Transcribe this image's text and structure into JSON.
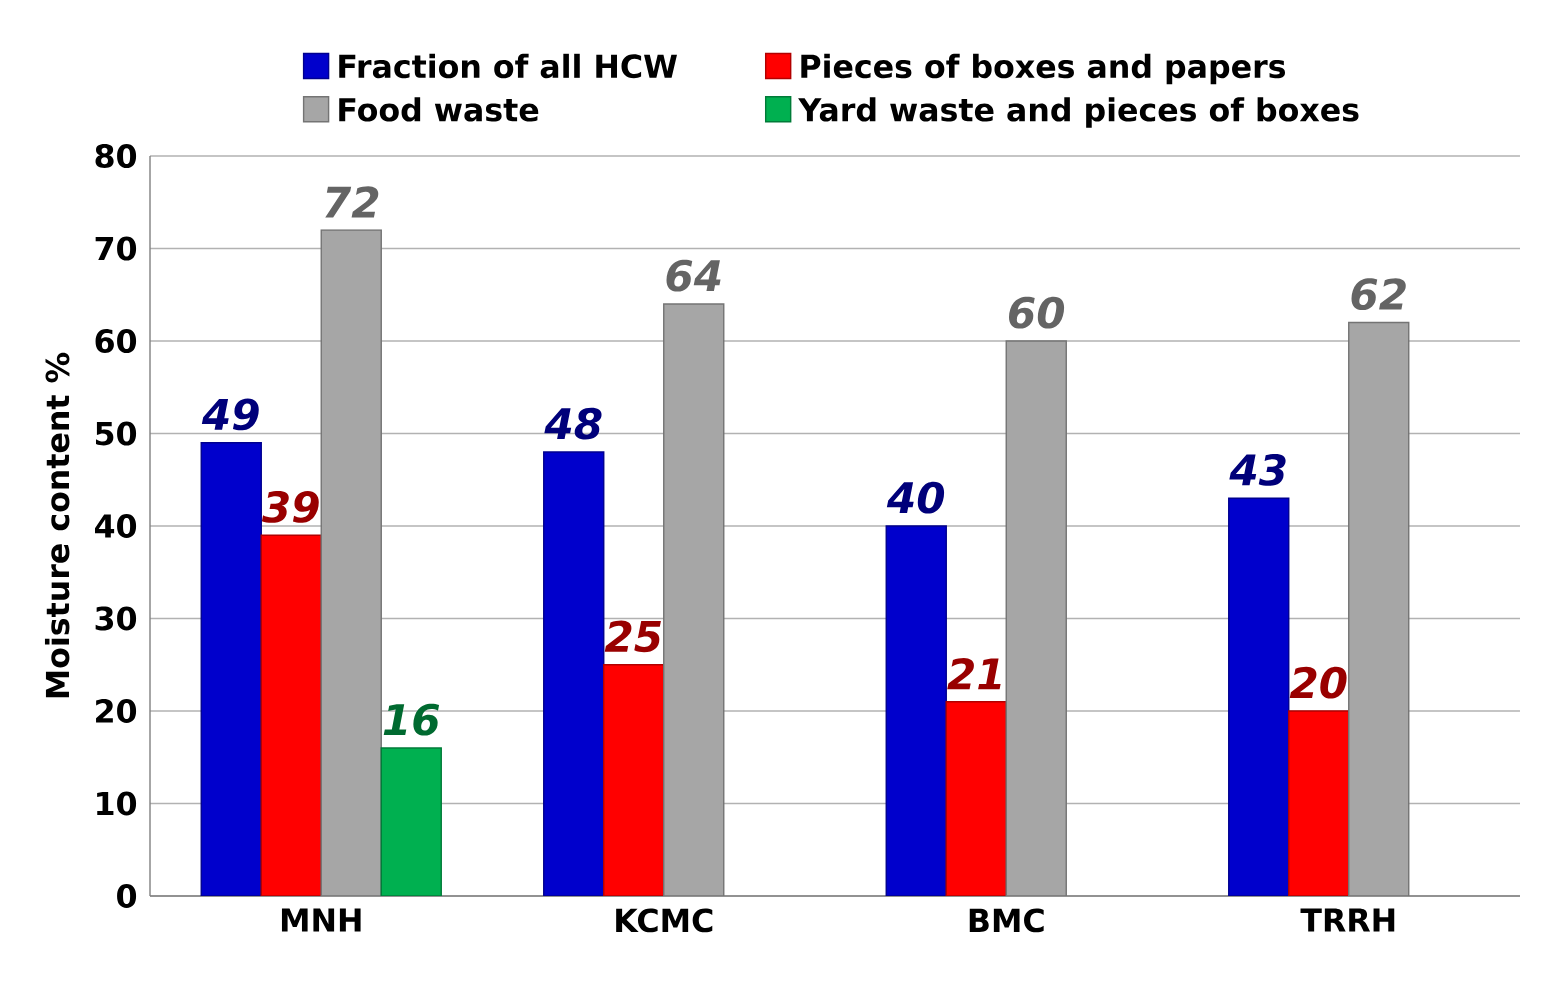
{
  "chart_data": {
    "type": "bar",
    "ylabel": "Moisture content %",
    "categories": [
      "MNH",
      "KCMC",
      "BMC",
      "TRRH"
    ],
    "series": [
      {
        "name": "Fraction of all HCW",
        "color": "#0000cc",
        "values": [
          49,
          48,
          40,
          43
        ]
      },
      {
        "name": "Pieces of boxes and papers",
        "color": "#ff0000",
        "values": [
          39,
          25,
          21,
          20
        ]
      },
      {
        "name": "Food waste",
        "color": "#a6a6a6",
        "values": [
          72,
          64,
          60,
          62
        ]
      },
      {
        "name": "Yard waste and pieces of boxes",
        "color": "#00b050",
        "values": [
          16,
          null,
          null,
          null
        ]
      }
    ],
    "ylim": [
      0,
      80
    ],
    "yticks": [
      0,
      10,
      20,
      30,
      40,
      50,
      60,
      70,
      80
    ],
    "grid": "y",
    "legend": "top",
    "data_labels": true
  }
}
